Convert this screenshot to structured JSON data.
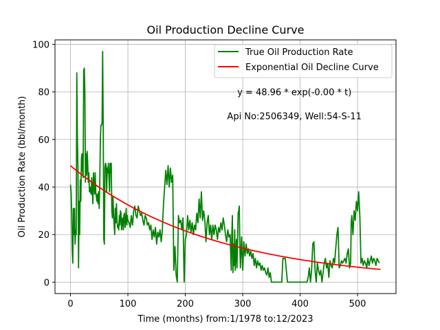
{
  "chart_data": {
    "type": "line",
    "title": "Oil Production Decline Curve",
    "xlabel": "Time (months) from:1/1978 to:12/2023",
    "ylabel": "Oil Production Rate (bbl/month)",
    "xlim": [
      -27,
      567
    ],
    "ylim": [
      -4.8,
      101.9
    ],
    "x_ticks": [
      0,
      100,
      200,
      300,
      400,
      500
    ],
    "y_ticks": [
      0,
      20,
      40,
      60,
      80,
      100
    ],
    "grid": true,
    "legend_position": "top-right",
    "annotations": [
      {
        "text": "y = 48.96 * exp(-0.00 * t)",
        "x": 390,
        "y": 80
      },
      {
        "text": "Api No:2506349, Well:54-S-11",
        "x": 390,
        "y": 70
      }
    ],
    "series": [
      {
        "name": "True Oil Production Rate",
        "color": "#008000",
        "points": [
          [
            0,
            41
          ],
          [
            1,
            38
          ],
          [
            2,
            30
          ],
          [
            3,
            14
          ],
          [
            4,
            8
          ],
          [
            5,
            31
          ],
          [
            6,
            20
          ],
          [
            7,
            31
          ],
          [
            8,
            16
          ],
          [
            9,
            22
          ],
          [
            10,
            20
          ],
          [
            11,
            88
          ],
          [
            12,
            60
          ],
          [
            13,
            48
          ],
          [
            14,
            6
          ],
          [
            15,
            34
          ],
          [
            16,
            20
          ],
          [
            17,
            43
          ],
          [
            18,
            34
          ],
          [
            19,
            52
          ],
          [
            20,
            54
          ],
          [
            21,
            47
          ],
          [
            22,
            44
          ],
          [
            23,
            89
          ],
          [
            24,
            90
          ],
          [
            25,
            80
          ],
          [
            26,
            42
          ],
          [
            27,
            54
          ],
          [
            28,
            45
          ],
          [
            29,
            55
          ],
          [
            30,
            50
          ],
          [
            31,
            42
          ],
          [
            32,
            46
          ],
          [
            33,
            38
          ],
          [
            34,
            40
          ],
          [
            35,
            38
          ],
          [
            36,
            37
          ],
          [
            37,
            44
          ],
          [
            38,
            38
          ],
          [
            39,
            33
          ],
          [
            40,
            46
          ],
          [
            41,
            41
          ],
          [
            42,
            37
          ],
          [
            43,
            46
          ],
          [
            44,
            38
          ],
          [
            45,
            36
          ],
          [
            46,
            34
          ],
          [
            47,
            37
          ],
          [
            48,
            33
          ],
          [
            49,
            38
          ],
          [
            50,
            31
          ],
          [
            51,
            42
          ],
          [
            52,
            60
          ],
          [
            53,
            66
          ],
          [
            54,
            66
          ],
          [
            55,
            67
          ],
          [
            56,
            97
          ],
          [
            57,
            66
          ],
          [
            58,
            18
          ],
          [
            59,
            16
          ],
          [
            60,
            48
          ],
          [
            61,
            50
          ],
          [
            62,
            49
          ],
          [
            63,
            38
          ],
          [
            64,
            48
          ],
          [
            65,
            46
          ],
          [
            66,
            50
          ],
          [
            67,
            44
          ],
          [
            68,
            38
          ],
          [
            69,
            50
          ],
          [
            70,
            46
          ],
          [
            71,
            50
          ],
          [
            72,
            30
          ],
          [
            73,
            27
          ],
          [
            74,
            36
          ],
          [
            75,
            29
          ],
          [
            76,
            24
          ],
          [
            77,
            20
          ],
          [
            78,
            31
          ],
          [
            79,
            25
          ],
          [
            80,
            33
          ],
          [
            81,
            26
          ],
          [
            82,
            23
          ],
          [
            83,
            24
          ],
          [
            84,
            22
          ],
          [
            85,
            28
          ],
          [
            86,
            24
          ],
          [
            87,
            30
          ],
          [
            88,
            29
          ],
          [
            89,
            22
          ],
          [
            90,
            26
          ],
          [
            91,
            27
          ],
          [
            92,
            22
          ],
          [
            93,
            28
          ],
          [
            94,
            29
          ],
          [
            95,
            23
          ],
          [
            96,
            26
          ],
          [
            97,
            31
          ],
          [
            98,
            24
          ],
          [
            99,
            28
          ],
          [
            100,
            26
          ],
          [
            102,
            25
          ],
          [
            104,
            23
          ],
          [
            106,
            28
          ],
          [
            108,
            24
          ],
          [
            110,
            30
          ],
          [
            112,
            32
          ],
          [
            114,
            28
          ],
          [
            116,
            27
          ],
          [
            118,
            32
          ],
          [
            120,
            30
          ],
          [
            122,
            28
          ],
          [
            124,
            29
          ],
          [
            126,
            26
          ],
          [
            128,
            24
          ],
          [
            130,
            28
          ],
          [
            132,
            27
          ],
          [
            134,
            24
          ],
          [
            136,
            25
          ],
          [
            138,
            22
          ],
          [
            140,
            24
          ],
          [
            142,
            18
          ],
          [
            144,
            22
          ],
          [
            146,
            19
          ],
          [
            148,
            23
          ],
          [
            150,
            16
          ],
          [
            152,
            21
          ],
          [
            154,
            19
          ],
          [
            156,
            22
          ],
          [
            158,
            17
          ],
          [
            160,
            22
          ],
          [
            162,
            33
          ],
          [
            164,
            40
          ],
          [
            166,
            47
          ],
          [
            168,
            41
          ],
          [
            170,
            49
          ],
          [
            172,
            40
          ],
          [
            174,
            48
          ],
          [
            176,
            42
          ],
          [
            178,
            45
          ],
          [
            180,
            5
          ],
          [
            182,
            15
          ],
          [
            184,
            3
          ],
          [
            186,
            0
          ],
          [
            188,
            28
          ],
          [
            190,
            25
          ],
          [
            192,
            26
          ],
          [
            194,
            22
          ],
          [
            196,
            27
          ],
          [
            198,
            0
          ],
          [
            200,
            18
          ],
          [
            202,
            20
          ],
          [
            204,
            28
          ],
          [
            206,
            22
          ],
          [
            208,
            26
          ],
          [
            210,
            21
          ],
          [
            212,
            25
          ],
          [
            214,
            20
          ],
          [
            216,
            24
          ],
          [
            218,
            22
          ],
          [
            220,
            29
          ],
          [
            222,
            25
          ],
          [
            224,
            35
          ],
          [
            226,
            27
          ],
          [
            228,
            38
          ],
          [
            230,
            26
          ],
          [
            232,
            30
          ],
          [
            234,
            26
          ],
          [
            236,
            17
          ],
          [
            238,
            25
          ],
          [
            240,
            28
          ],
          [
            242,
            20
          ],
          [
            244,
            24
          ],
          [
            246,
            18
          ],
          [
            248,
            24
          ],
          [
            250,
            20
          ],
          [
            252,
            24
          ],
          [
            254,
            22
          ],
          [
            256,
            18
          ],
          [
            258,
            23
          ],
          [
            260,
            21
          ],
          [
            262,
            25
          ],
          [
            264,
            22
          ],
          [
            266,
            27
          ],
          [
            268,
            24
          ],
          [
            270,
            20
          ],
          [
            272,
            17
          ],
          [
            274,
            22
          ],
          [
            276,
            19
          ],
          [
            278,
            20
          ],
          [
            280,
            5
          ],
          [
            281,
            20
          ],
          [
            282,
            28
          ],
          [
            283,
            4
          ],
          [
            284,
            16
          ],
          [
            285,
            7
          ],
          [
            286,
            22
          ],
          [
            287,
            5
          ],
          [
            288,
            12
          ],
          [
            289,
            18
          ],
          [
            290,
            6
          ],
          [
            291,
            16
          ],
          [
            292,
            29
          ],
          [
            293,
            30
          ],
          [
            294,
            32
          ],
          [
            295,
            15
          ],
          [
            296,
            6
          ],
          [
            298,
            19
          ],
          [
            300,
            5
          ],
          [
            302,
            17
          ],
          [
            304,
            11
          ],
          [
            306,
            16
          ],
          [
            308,
            12
          ],
          [
            310,
            14
          ],
          [
            312,
            11
          ],
          [
            314,
            13
          ],
          [
            316,
            10
          ],
          [
            318,
            12
          ],
          [
            320,
            7
          ],
          [
            322,
            10
          ],
          [
            324,
            6
          ],
          [
            326,
            9
          ],
          [
            328,
            7
          ],
          [
            330,
            8
          ],
          [
            332,
            5
          ],
          [
            334,
            7
          ],
          [
            336,
            5
          ],
          [
            338,
            6
          ],
          [
            340,
            4
          ],
          [
            342,
            3
          ],
          [
            344,
            6
          ],
          [
            346,
            2
          ],
          [
            348,
            4
          ],
          [
            350,
            0
          ],
          [
            356,
            0
          ],
          [
            362,
            0
          ],
          [
            368,
            0
          ],
          [
            370,
            10
          ],
          [
            374,
            10
          ],
          [
            378,
            0
          ],
          [
            384,
            0
          ],
          [
            390,
            0
          ],
          [
            396,
            0
          ],
          [
            402,
            0
          ],
          [
            408,
            0
          ],
          [
            412,
            0
          ],
          [
            414,
            2
          ],
          [
            416,
            6
          ],
          [
            418,
            0
          ],
          [
            420,
            5
          ],
          [
            422,
            16
          ],
          [
            424,
            17
          ],
          [
            426,
            5
          ],
          [
            428,
            0
          ],
          [
            430,
            8
          ],
          [
            432,
            5
          ],
          [
            434,
            3
          ],
          [
            436,
            5
          ],
          [
            438,
            0
          ],
          [
            440,
            4
          ],
          [
            442,
            8
          ],
          [
            444,
            10
          ],
          [
            446,
            6
          ],
          [
            448,
            8
          ],
          [
            450,
            2
          ],
          [
            452,
            9
          ],
          [
            454,
            7
          ],
          [
            456,
            6
          ],
          [
            458,
            10
          ],
          [
            460,
            8
          ],
          [
            462,
            14
          ],
          [
            464,
            20
          ],
          [
            466,
            23
          ],
          [
            468,
            6
          ],
          [
            470,
            7
          ],
          [
            472,
            9
          ],
          [
            474,
            8
          ],
          [
            476,
            9
          ],
          [
            478,
            10
          ],
          [
            480,
            8
          ],
          [
            482,
            12
          ],
          [
            484,
            14
          ],
          [
            486,
            6
          ],
          [
            488,
            8
          ],
          [
            489,
            25
          ],
          [
            490,
            28
          ],
          [
            492,
            20
          ],
          [
            494,
            30
          ],
          [
            496,
            26
          ],
          [
            498,
            34
          ],
          [
            500,
            30
          ],
          [
            502,
            38
          ],
          [
            504,
            28
          ],
          [
            506,
            8
          ],
          [
            508,
            10
          ],
          [
            510,
            7
          ],
          [
            512,
            9
          ],
          [
            514,
            8
          ],
          [
            516,
            6
          ],
          [
            518,
            10
          ],
          [
            520,
            7
          ],
          [
            522,
            9
          ],
          [
            524,
            11
          ],
          [
            526,
            8
          ],
          [
            528,
            10
          ],
          [
            530,
            9
          ],
          [
            532,
            7
          ],
          [
            534,
            10
          ],
          [
            536,
            9
          ],
          [
            538,
            8
          ]
        ]
      },
      {
        "name": "Exponential Oil Decline Curve",
        "color": "#ff0000",
        "function": {
          "a": 48.96,
          "b": 0.0041
        },
        "x_range": [
          0,
          540
        ]
      }
    ]
  }
}
